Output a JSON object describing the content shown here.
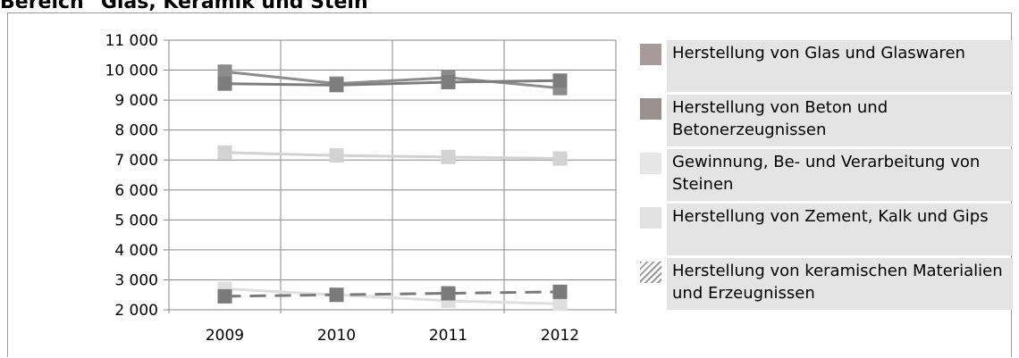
{
  "title": "Bereich \"Glas, Keramik und Stein\"",
  "legend": {
    "items": [
      {
        "label": "Herstellung von Glas und Glaswaren",
        "color": "#a89a9a",
        "pattern": "solid"
      },
      {
        "label": "Herstellung von Beton und Betonerzeugnissen",
        "color": "#9a9090",
        "pattern": "solid"
      },
      {
        "label": "Gewinnung, Be- und Verarbeitung von Steinen",
        "color": "#e6e6e6",
        "pattern": "solid"
      },
      {
        "label": "Herstellung von Zement, Kalk und Gips",
        "color": "#e2e2e2",
        "pattern": "solid"
      },
      {
        "label": "Herstellung von keramischen Materialien und Erzeugnissen",
        "color": "#9a9a9a",
        "pattern": "hatched"
      }
    ]
  },
  "chart_data": {
    "type": "line",
    "x": [
      "2009",
      "2010",
      "2011",
      "2012"
    ],
    "y_ticks": [
      "2 000",
      "3 000",
      "4 000",
      "5 000",
      "6 000",
      "7 000",
      "8 000",
      "9 000",
      "10 000",
      "11 000"
    ],
    "ylim": [
      2000,
      11000
    ],
    "grid": true,
    "legend_position": "right",
    "series": [
      {
        "name": "Herstellung von Glas und Glaswaren",
        "values": [
          9950,
          9550,
          9750,
          9400
        ],
        "color": "#8c8c8c",
        "dashed": false
      },
      {
        "name": "Herstellung von Beton und Betonerzeugnissen",
        "values": [
          9550,
          9500,
          9600,
          9650
        ],
        "color": "#7d7d7d",
        "dashed": false
      },
      {
        "name": "Gewinnung, Be- und Verarbeitung von Steinen",
        "values": [
          7250,
          7150,
          7100,
          7050
        ],
        "color": "#d2d2d2",
        "dashed": false
      },
      {
        "name": "Herstellung von Zement, Kalk und Gips",
        "values": [
          2700,
          2500,
          2300,
          2200
        ],
        "color": "#dedede",
        "dashed": false
      },
      {
        "name": "Herstellung von keramischen Materialien und Erzeugnissen",
        "values": [
          2450,
          2500,
          2550,
          2600
        ],
        "color": "#7a7a7a",
        "dashed": true
      }
    ]
  }
}
